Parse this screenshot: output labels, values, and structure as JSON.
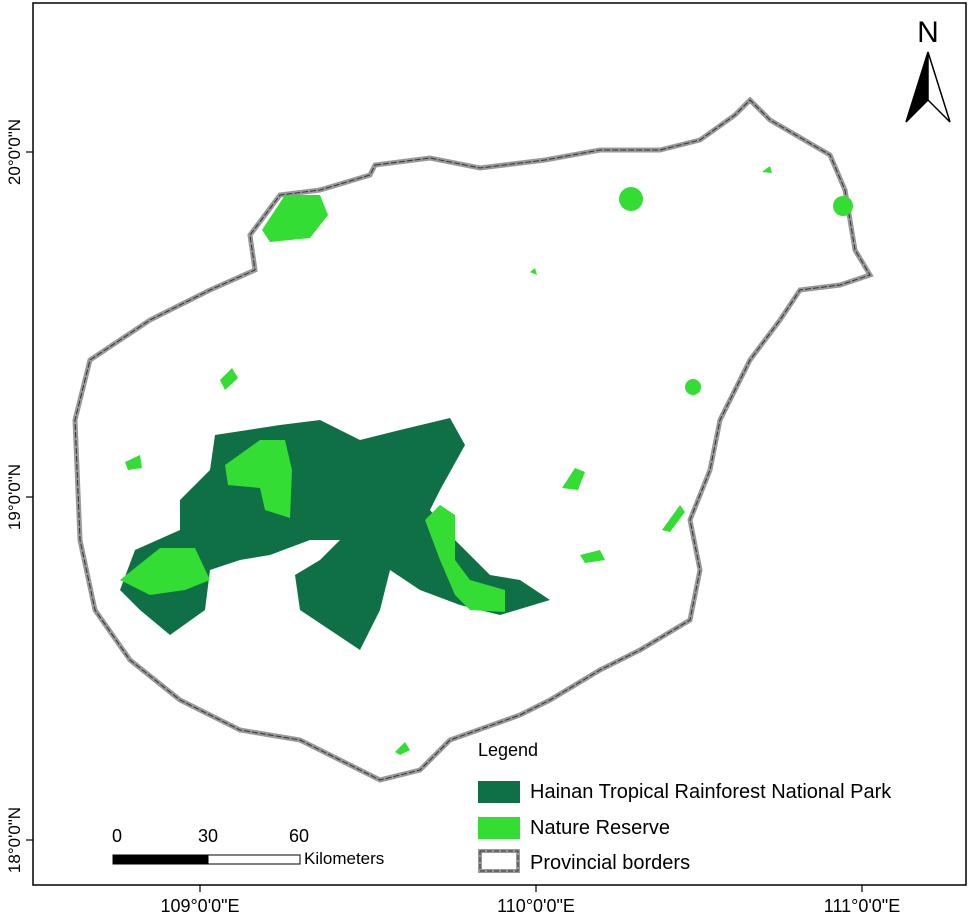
{
  "map": {
    "north_label": "N",
    "lat_labels": [
      "20°0'0\"N",
      "19°0'0\"N",
      "18°0'0\"N"
    ],
    "lon_labels": [
      "109°0'0\"E",
      "110°0'0\"E",
      "111°0'0\"E"
    ],
    "legend": {
      "title": "Legend",
      "items": [
        "Hainan Tropical Rainforest National Park",
        "Nature Reserve",
        "Provincial borders"
      ]
    },
    "scale_bar": {
      "ticks": [
        0,
        30,
        60
      ],
      "unit": "Kilometers"
    }
  }
}
